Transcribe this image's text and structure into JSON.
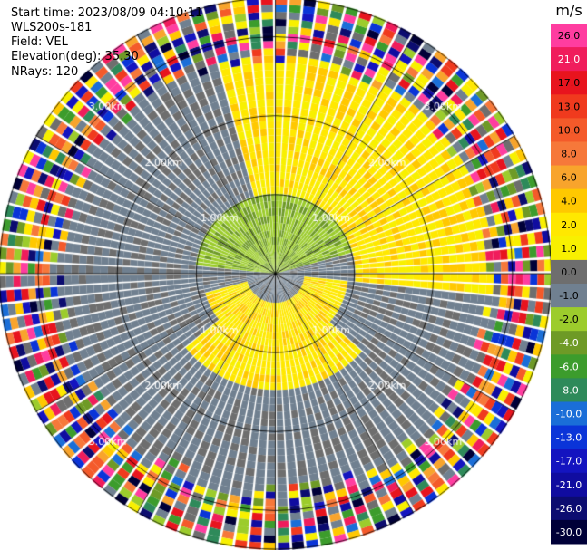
{
  "header": {
    "start_time": "Start time: 2023/08/09 04:10:11",
    "instrument": "WLS200s-181",
    "field": "Field: VEL",
    "elevation": "Elevation(deg): 35.30",
    "nrays": "NRays: 120"
  },
  "colorbar": {
    "unit": "m/s",
    "ticks": [
      "26.0",
      "21.0",
      "17.0",
      "13.0",
      "10.0",
      "8.0",
      "6.0",
      "4.0",
      "2.0",
      "1.0",
      "0.0",
      "-1.0",
      "-2.0",
      "-4.0",
      "-6.0",
      "-8.0",
      "-10.0",
      "-13.0",
      "-17.0",
      "-21.0",
      "-26.0",
      "-30.0"
    ],
    "colors": [
      "#ff3da0",
      "#f01c5c",
      "#e8141e",
      "#f03a1e",
      "#f45a2a",
      "#f6783a",
      "#f8a42c",
      "#ffc800",
      "#ffe800",
      "#f8f000",
      "#6e6e6e",
      "#708090",
      "#9ccc2c",
      "#6e9a26",
      "#3c9c2c",
      "#2e8a5a",
      "#1a6ed8",
      "#0a34d8",
      "#1414c0",
      "#100ca0",
      "#0c0c70",
      "#000038"
    ],
    "text_colors": [
      "#000",
      "#fff",
      "#000",
      "#000",
      "#000",
      "#000",
      "#000",
      "#000",
      "#000",
      "#000",
      "#000",
      "#000",
      "#000",
      "#fff",
      "#fff",
      "#fff",
      "#fff",
      "#fff",
      "#fff",
      "#fff",
      "#fff",
      "#fff"
    ]
  },
  "chart_data": {
    "type": "heatmap",
    "projection": "PPI polar",
    "field": "VEL",
    "units": "m/s",
    "n_rays": 120,
    "range_rings_km": [
      1.0,
      2.0,
      3.0
    ],
    "range_ring_labels": [
      "1.00km",
      "2.00km",
      "3.00km"
    ],
    "max_range_km": 3.5,
    "dominant_regions": [
      {
        "sector": "north-east",
        "velocity_range_ms": [
          1.0,
          4.0
        ]
      },
      {
        "sector": "south-center",
        "velocity_range_ms": [
          1.0,
          4.0
        ]
      },
      {
        "sector": "inner-north",
        "velocity_range_ms": [
          -4.0,
          -1.0
        ]
      },
      {
        "sector": "west / south-east",
        "velocity_range_ms": [
          -1.0,
          0.0
        ]
      }
    ],
    "outer_region": "noisy, full velocity range -30.0 to 26.0"
  }
}
